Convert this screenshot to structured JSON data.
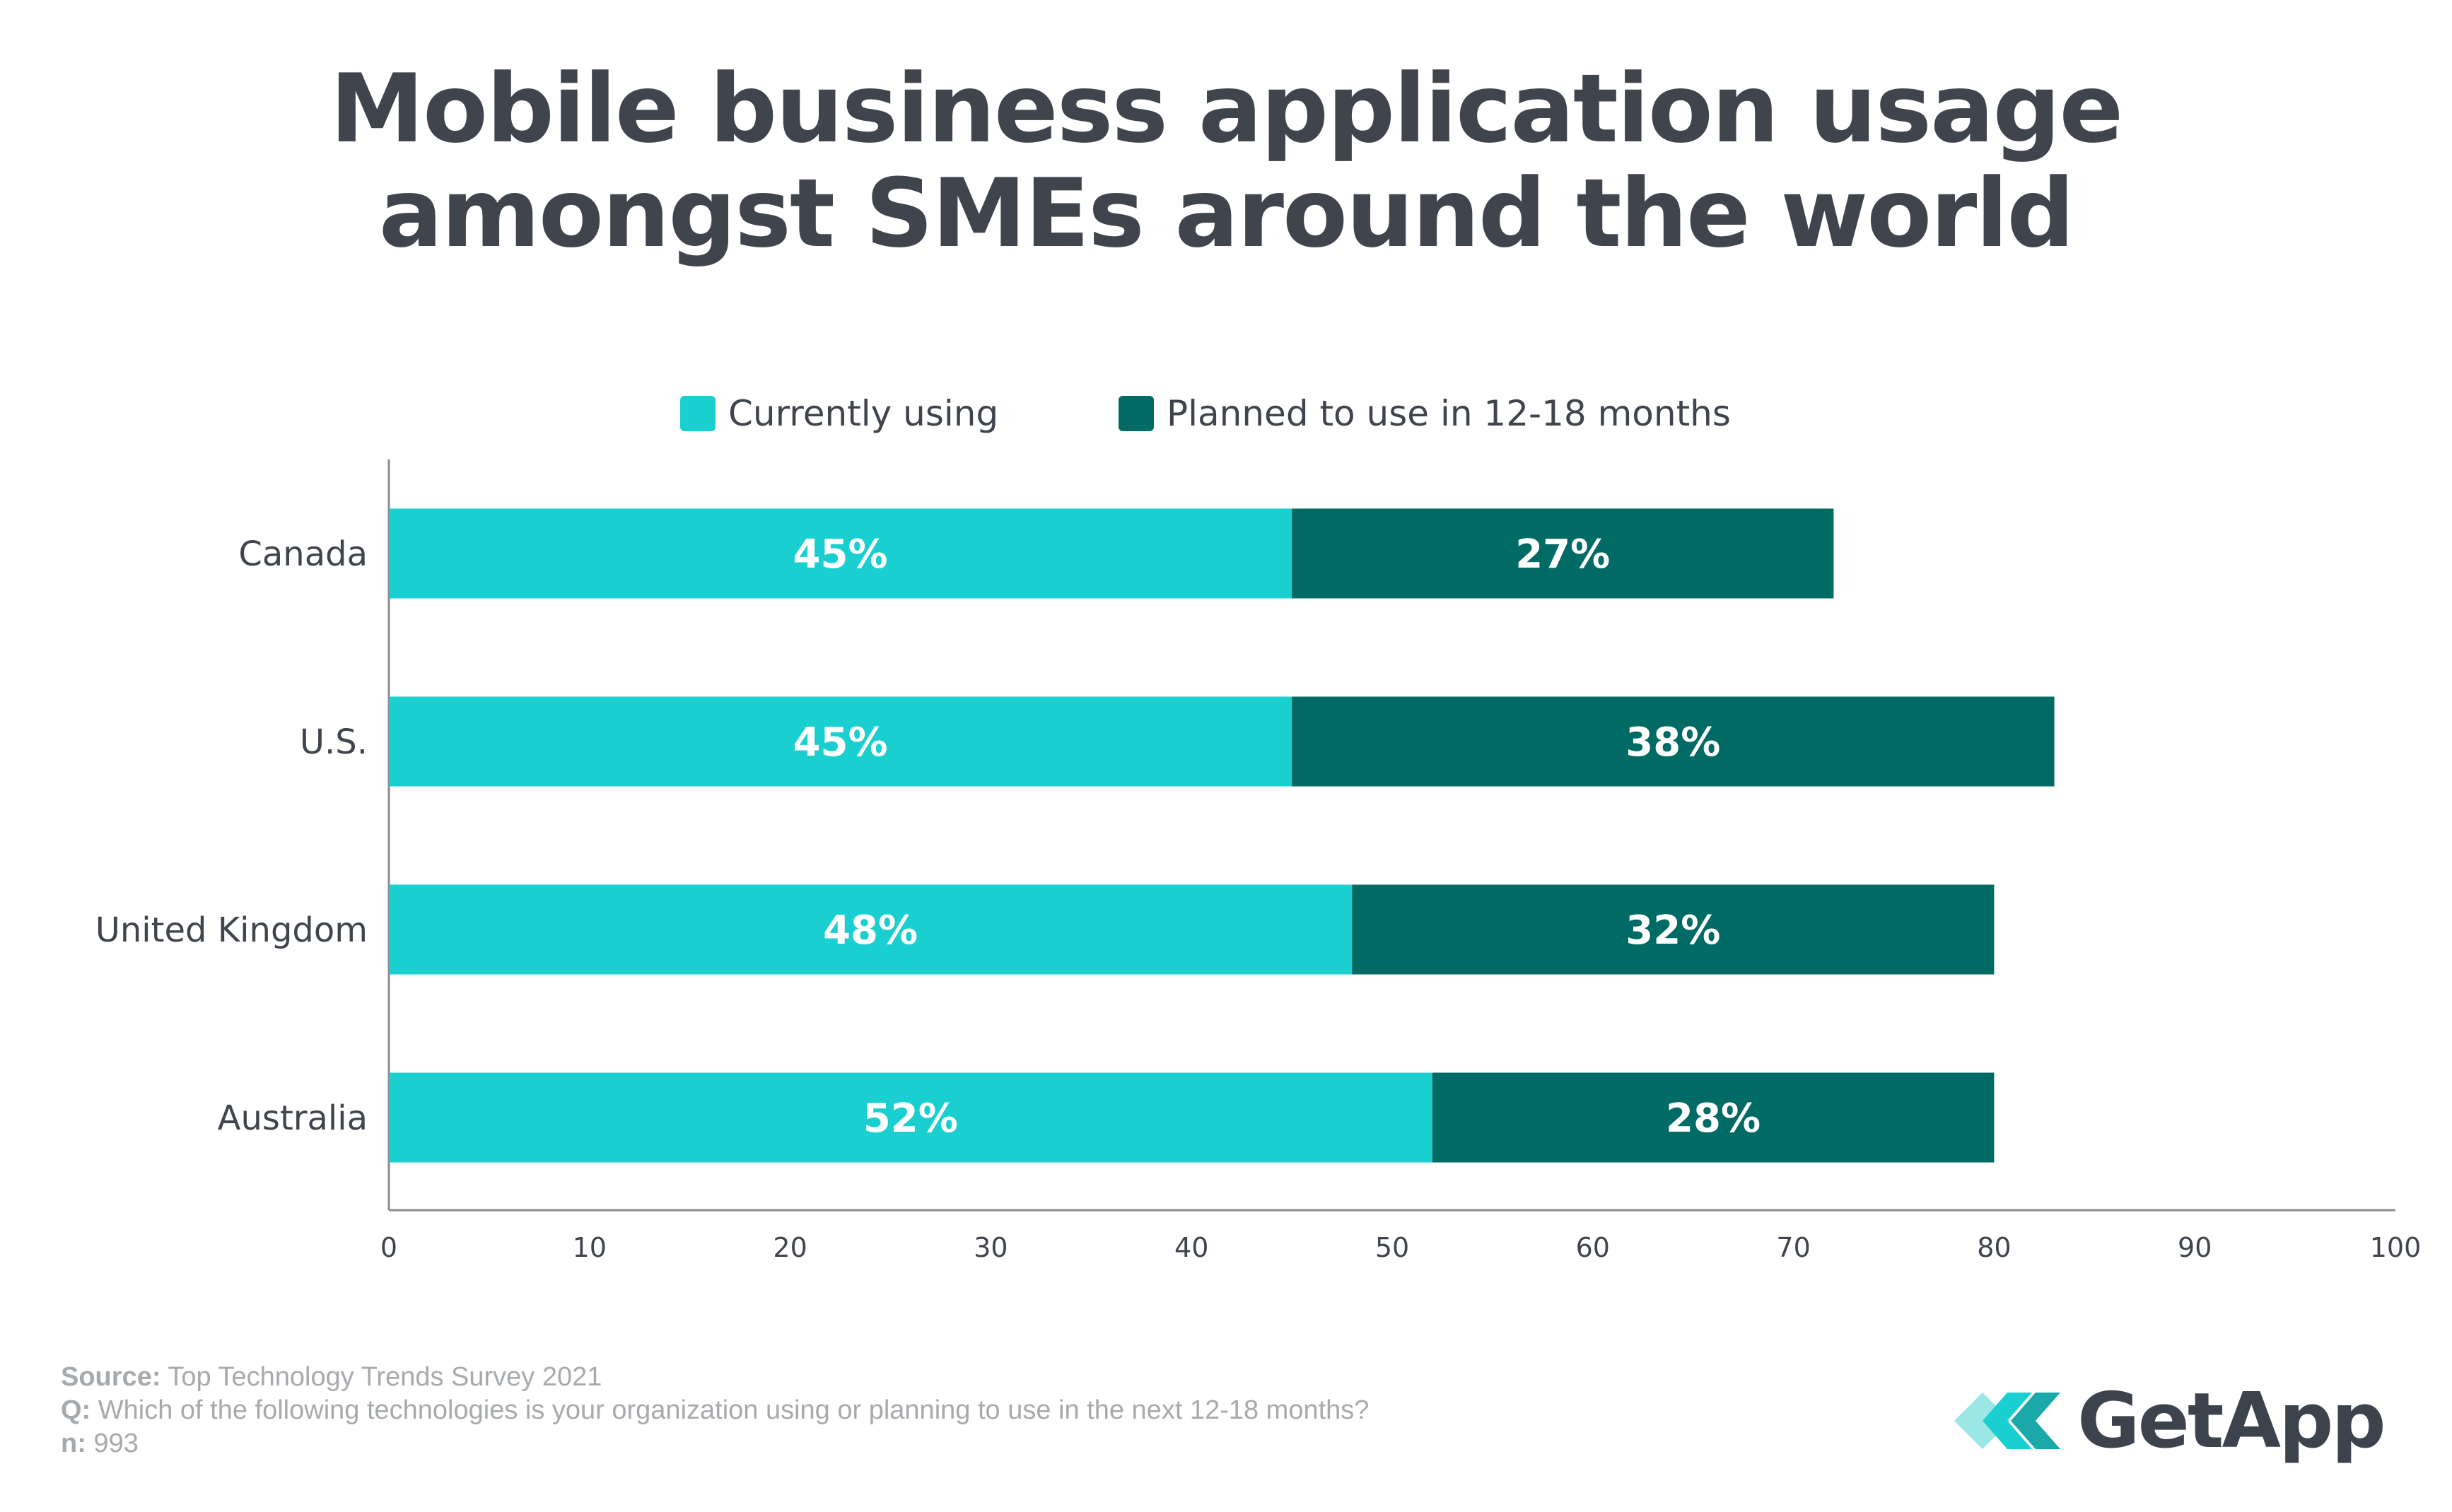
{
  "title_line1": "Mobile business application usage",
  "title_line2": "amongst SMEs around the world",
  "colors": {
    "currently_using": "#1acfcf",
    "planned": "#006a64",
    "text": "#40454d",
    "axis": "#8c8c8c",
    "footer": "#a7aaad"
  },
  "chart_data": {
    "type": "bar",
    "orientation": "horizontal",
    "stacked": true,
    "categories": [
      "Canada",
      "U.S.",
      "United Kingdom",
      "Australia"
    ],
    "series": [
      {
        "name": "Currently using",
        "values": [
          45,
          45,
          48,
          52
        ],
        "labels": [
          "45%",
          "45%",
          "48%",
          "52%"
        ],
        "color": "#1acfcf"
      },
      {
        "name": "Planned to use in 12-18 months",
        "values": [
          27,
          38,
          32,
          28
        ],
        "labels": [
          "27%",
          "38%",
          "32%",
          "28%"
        ],
        "color": "#006a64"
      }
    ],
    "xlim": [
      0,
      100
    ],
    "xticks": [
      0,
      10,
      20,
      30,
      40,
      50,
      60,
      70,
      80,
      90,
      100
    ],
    "legend_position": "top-center",
    "grid": false
  },
  "footer": {
    "source_label": "Source:",
    "source_text": " Top Technology Trends Survey 2021",
    "q_label": "Q:",
    "q_text": " Which of the following technologies is your organization using or planning to use in the next 12-18 months?",
    "n_label": "n:",
    "n_text": " 993"
  },
  "logo": {
    "text": "GetApp",
    "icon": "getapp-chevron-icon"
  }
}
